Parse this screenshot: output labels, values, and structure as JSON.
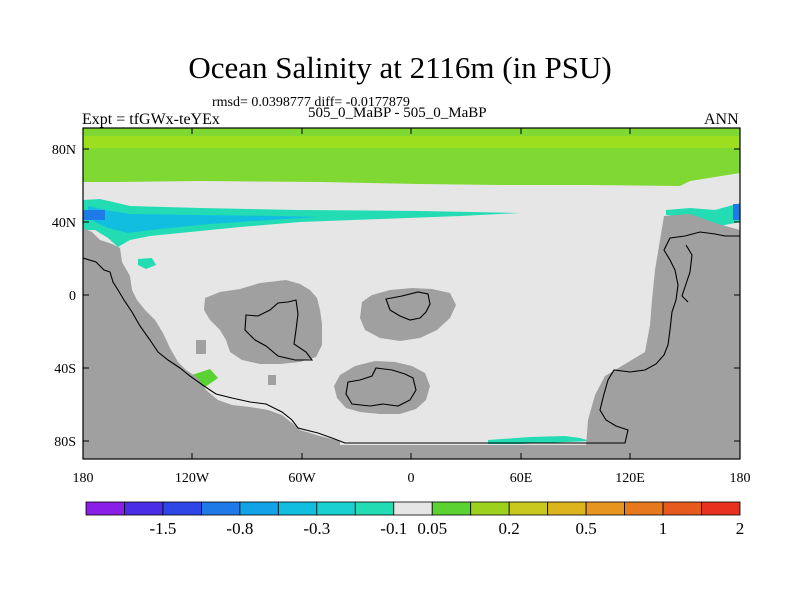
{
  "title": "Ocean Salinity at 2116m (in PSU)",
  "stats": "rmsd= 0.0398777 diff= -0.0177879",
  "experiment": "Expt = tfGWx-teYEx",
  "subtitle": "505_0_MaBP - 505_0_MaBP",
  "season": "ANN",
  "map": {
    "land_color": "#a0a0a0",
    "ocean_color": "#e6e6e6",
    "lat_ticks": [
      "80N",
      "40N",
      "0",
      "40S",
      "80S"
    ],
    "lon_ticks": [
      "180",
      "120W",
      "60W",
      "0",
      "60E",
      "120E",
      "180"
    ]
  },
  "colorbar": {
    "colors": [
      "#8a1ee6",
      "#4a2ee6",
      "#2e46e6",
      "#1e7ae6",
      "#12a2e6",
      "#12bee0",
      "#1ad0d0",
      "#24dcb4",
      "#e6e6e6",
      "#5ad232",
      "#9cd21e",
      "#c8c81e",
      "#dcb41e",
      "#e6961e",
      "#e6781e",
      "#e65a1e",
      "#e6321e"
    ],
    "labels": [
      "-1.5",
      "-0.8",
      "-0.3",
      "-0.1",
      "0.05",
      "0.2",
      "0.5",
      "1",
      "2"
    ],
    "label_boundaries": [
      2,
      4,
      6,
      8,
      9,
      11,
      13,
      15,
      17
    ]
  }
}
